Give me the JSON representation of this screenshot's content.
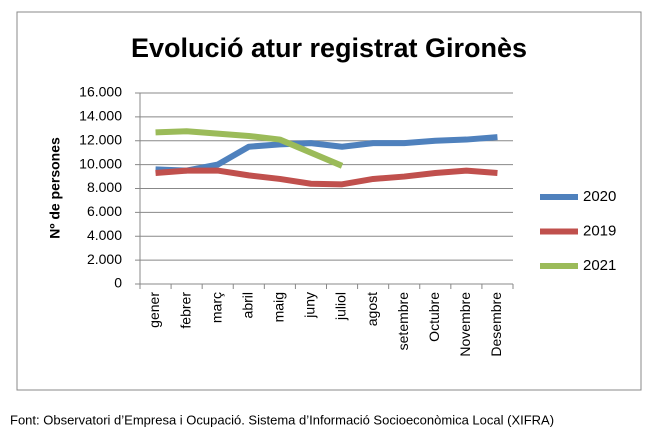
{
  "chart_data": {
    "type": "line",
    "title": "Evolució atur registrat Gironès",
    "y_label": "Nº de persones",
    "source": "Font: Observatori d’Empresa i Ocupació. Sistema d’Informació Socioeconòmica Local (XIFRA)",
    "categories": [
      "gener",
      "febrer",
      "març",
      "abril",
      "maig",
      "juny",
      "juliol",
      "agost",
      "setembre",
      "Octubre",
      "Novembre",
      "Desembre"
    ],
    "series": [
      {
        "name": "2020",
        "color": "#4f81bd",
        "values": [
          9600,
          9500,
          10000,
          11500,
          11700,
          11800,
          11500,
          11800,
          11800,
          12000,
          12100,
          12300
        ]
      },
      {
        "name": "2019",
        "color": "#c0504d",
        "values": [
          9300,
          9500,
          9500,
          9100,
          8800,
          8400,
          8350,
          8800,
          9000,
          9300,
          9500,
          9300
        ]
      },
      {
        "name": "2021",
        "color": "#9bbb59",
        "values": [
          12700,
          12800,
          12600,
          12400,
          12100,
          11000,
          9900,
          null,
          null,
          null,
          null,
          null
        ]
      }
    ],
    "ylim": [
      0,
      16000
    ],
    "yticks": [
      0,
      {
        "value": 2000,
        "label": "2.000"
      },
      {
        "value": 4000,
        "label": "4.000"
      },
      {
        "value": 6000,
        "label": "6.000"
      },
      {
        "value": 8000,
        "label": "8.000"
      },
      {
        "value": 10000,
        "label": "10.000"
      },
      {
        "value": 12000,
        "label": "12.000"
      },
      {
        "value": 14000,
        "label": "14.000"
      },
      {
        "value": 16000,
        "label": "16.000"
      }
    ],
    "grid": true,
    "legend": "right"
  }
}
